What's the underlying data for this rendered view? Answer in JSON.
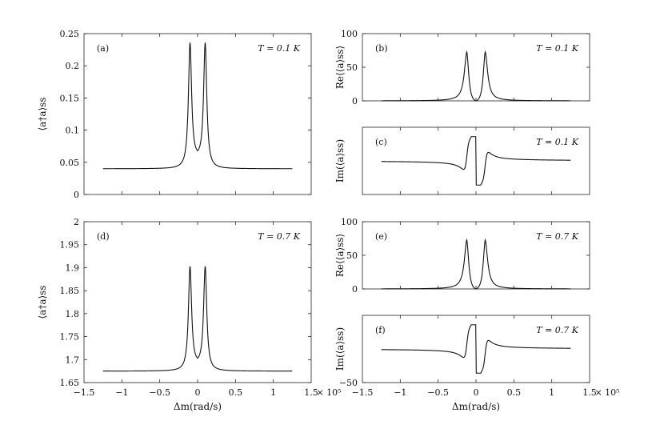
{
  "chart_data": [
    {
      "id": "a",
      "type": "line",
      "panel_label": "(a)",
      "annotation": "T = 0.1 K",
      "ylabel": "⟨a†a⟩ss",
      "xlabel": "",
      "xlim": [
        -150000,
        150000
      ],
      "ylim": [
        0,
        0.25
      ],
      "xticks": [],
      "yticks": [
        {
          "v": 0,
          "label": "0"
        },
        {
          "v": 0.05,
          "label": "0.05"
        },
        {
          "v": 0.1,
          "label": "0.1"
        },
        {
          "v": 0.15,
          "label": "0.15"
        },
        {
          "v": 0.2,
          "label": "0.2"
        },
        {
          "v": 0.25,
          "label": "0.25"
        }
      ],
      "series": [
        {
          "kind": "peaks",
          "xrange": [
            -125000,
            125000
          ],
          "baseline": 0.04,
          "peak_pos": 10000,
          "peak_val": 0.236,
          "dip_val": 0.057,
          "width": 3000
        }
      ]
    },
    {
      "id": "b",
      "type": "line",
      "panel_label": "(b)",
      "annotation": "T = 0.1 K",
      "ylabel": "Re⟨⟨a⟩ss⟩",
      "xlabel": "",
      "xlim": [
        -150000,
        150000
      ],
      "ylim": [
        0,
        100
      ],
      "xticks": [],
      "yticks": [
        {
          "v": 0,
          "label": "0"
        },
        {
          "v": 50,
          "label": "50"
        },
        {
          "v": 100,
          "label": "100"
        }
      ],
      "series": [
        {
          "kind": "re",
          "xrange": [
            -125000,
            125000
          ],
          "peak_pos": 12000,
          "peak_val": 71,
          "width": 4000
        }
      ]
    },
    {
      "id": "c",
      "type": "line",
      "panel_label": "(c)",
      "annotation": "T = 0.1 K",
      "ylabel": "Im(⟨a⟩ss)",
      "xlabel": "",
      "xlim": [
        -150000,
        150000
      ],
      "ylim": [
        -50,
        50
      ],
      "xticks": [],
      "yticks": [],
      "series": [
        {
          "kind": "im",
          "xrange": [
            -125000,
            125000
          ],
          "peak_pos": 12000,
          "peak_val": 36,
          "tail": 3.5,
          "width": 4000
        }
      ]
    },
    {
      "id": "d",
      "type": "line",
      "panel_label": "(d)",
      "annotation": "T = 0.7 K",
      "ylabel": "⟨a†a⟩ss",
      "xlabel": "Δm(rad/s)",
      "xlim": [
        -150000,
        150000
      ],
      "ylim": [
        1.65,
        2.0
      ],
      "xticks": [
        {
          "v": -150000,
          "label": "−1.5"
        },
        {
          "v": -100000,
          "label": "−1"
        },
        {
          "v": -50000,
          "label": "−0.5"
        },
        {
          "v": 0,
          "label": "0"
        },
        {
          "v": 50000,
          "label": "0.5"
        },
        {
          "v": 100000,
          "label": "1"
        },
        {
          "v": 150000,
          "label": "1.5"
        }
      ],
      "xscale_note": "× 10⁵",
      "yticks": [
        {
          "v": 1.65,
          "label": "1.65"
        },
        {
          "v": 1.7,
          "label": "1.7"
        },
        {
          "v": 1.75,
          "label": "1.75"
        },
        {
          "v": 1.8,
          "label": "1.8"
        },
        {
          "v": 1.85,
          "label": "1.85"
        },
        {
          "v": 1.9,
          "label": "1.9"
        },
        {
          "v": 1.95,
          "label": "1.95"
        },
        {
          "v": 2.0,
          "label": "2"
        }
      ],
      "series": [
        {
          "kind": "peaks",
          "xrange": [
            -125000,
            125000
          ],
          "baseline": 1.675,
          "peak_pos": 10000,
          "peak_val": 1.903,
          "dip_val": 1.69,
          "width": 3000
        }
      ]
    },
    {
      "id": "e",
      "type": "line",
      "panel_label": "(e)",
      "annotation": "T = 0.7 K",
      "ylabel": "Re⟨⟨a⟩ss⟩",
      "xlabel": "",
      "xlim": [
        -150000,
        150000
      ],
      "ylim": [
        0,
        100
      ],
      "xticks": [],
      "yticks": [
        {
          "v": 0,
          "label": "0"
        },
        {
          "v": 50,
          "label": "50"
        },
        {
          "v": 100,
          "label": "100"
        }
      ],
      "series": [
        {
          "kind": "re",
          "xrange": [
            -125000,
            125000
          ],
          "peak_pos": 12000,
          "peak_val": 71,
          "width": 4000
        }
      ]
    },
    {
      "id": "f",
      "type": "line",
      "panel_label": "(f)",
      "annotation": "T = 0.7 K",
      "ylabel": "Im(⟨a⟩ss)",
      "xlabel": "Δm(rad/s)",
      "xlim": [
        -150000,
        150000
      ],
      "ylim": [
        -50,
        50
      ],
      "xticks": [
        {
          "v": -150000,
          "label": "−1.5"
        },
        {
          "v": -100000,
          "label": "−1"
        },
        {
          "v": -50000,
          "label": "−0.5"
        },
        {
          "v": 0,
          "label": "0"
        },
        {
          "v": 50000,
          "label": "0.5"
        },
        {
          "v": 100000,
          "label": "1"
        },
        {
          "v": 150000,
          "label": "1.5"
        }
      ],
      "xscale_note": "× 10⁵",
      "yticks": [
        {
          "v": -50,
          "label": "−50"
        }
      ],
      "series": [
        {
          "kind": "im",
          "xrange": [
            -125000,
            125000
          ],
          "peak_pos": 12000,
          "peak_val": 36,
          "tail": 3.5,
          "width": 4000
        }
      ]
    }
  ]
}
